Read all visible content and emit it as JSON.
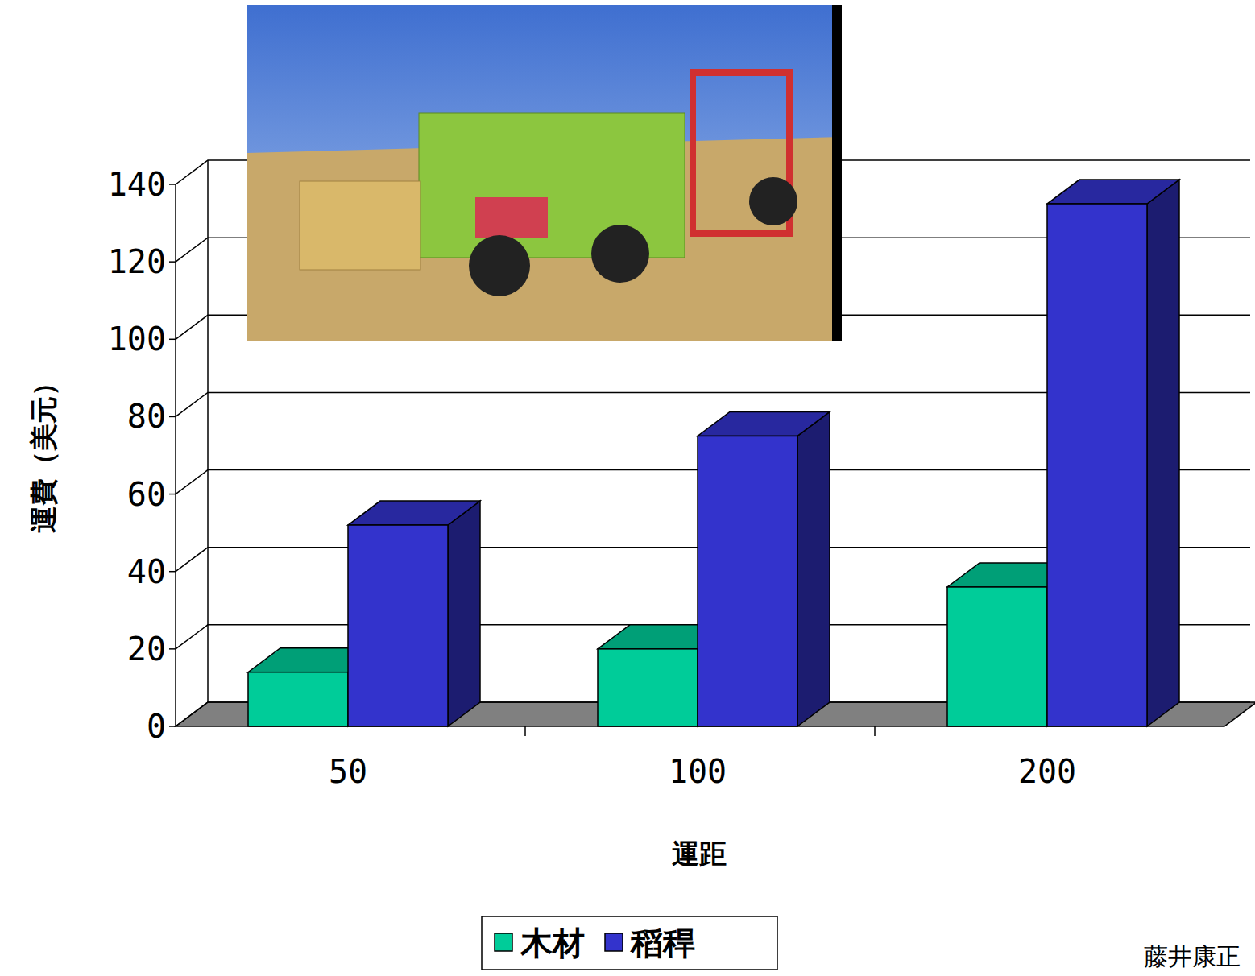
{
  "chart_data": {
    "type": "bar",
    "x_label": "運距",
    "y_label": "運費（美元）",
    "categories": [
      "50",
      "100",
      "200"
    ],
    "series": [
      {
        "name": "木材",
        "color": "#00cc99",
        "values": [
          14,
          20,
          36
        ]
      },
      {
        "name": "稻稈",
        "color": "#3333cc",
        "values": [
          52,
          75,
          135
        ]
      }
    ],
    "ylim": [
      0,
      140
    ],
    "yticks": [
      0,
      20,
      40,
      60,
      80,
      100,
      120,
      140
    ],
    "grid": true,
    "legend": "bottom",
    "annotations": [
      "藤井康正"
    ]
  }
}
